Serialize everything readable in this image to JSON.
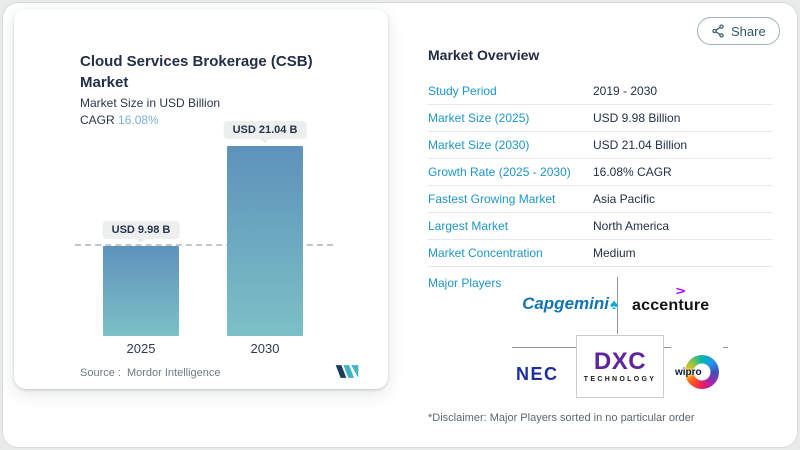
{
  "share_button": {
    "label": "Share"
  },
  "chart_panel": {
    "title_line1": "Cloud Services Brokerage (CSB)",
    "title_line2": "Market",
    "subtitle": "Market Size in USD Billion",
    "cagr_label": "CAGR",
    "cagr_value": "16.08%",
    "source_label": "Source :",
    "source_value": "Mordor Intelligence"
  },
  "chart_data": {
    "type": "bar",
    "title": "Cloud Services Brokerage (CSB) Market",
    "ylabel": "Market Size in USD Billion",
    "cagr_pct": 16.08,
    "categories": [
      "2025",
      "2030"
    ],
    "values": [
      9.98,
      21.04
    ],
    "bar_labels": [
      "USD 9.98 B",
      "USD 21.04 B"
    ],
    "reference_line_value": 9.98,
    "bar_gradient_top": "#5E92BB",
    "bar_gradient_bottom": "#7CC0C6",
    "legend": "none",
    "grid": "off"
  },
  "overview": {
    "heading": "Market Overview",
    "rows": [
      {
        "label": "Study Period",
        "value": "2019 - 2030"
      },
      {
        "label": "Market Size (2025)",
        "value": "USD 9.98 Billion"
      },
      {
        "label": "Market Size (2030)",
        "value": "USD 21.04 Billion"
      },
      {
        "label": "Growth Rate (2025 - 2030)",
        "value": "16.08% CAGR"
      },
      {
        "label": "Fastest Growing Market",
        "value": "Asia Pacific"
      },
      {
        "label": "Largest Market",
        "value": "North America"
      },
      {
        "label": "Market Concentration",
        "value": "Medium"
      }
    ],
    "major_players_label": "Major Players",
    "players": {
      "capgemini": {
        "text": "Capgemini",
        "color": "#0070AD"
      },
      "accenture": {
        "text": "accenture",
        "accent_color": "#A100FF"
      },
      "nec": {
        "text": "NEC",
        "color": "#1F2F9C"
      },
      "dxc": {
        "text": "DXC",
        "subtext": "TECHNOLOGY",
        "color": "#5F249F"
      },
      "wipro": {
        "text": "wipro"
      }
    },
    "disclaimer": "*Disclaimer: Major Players sorted in no particular order"
  },
  "colors": {
    "row_label_blue": "#1E95C9",
    "value_navy": "#233048",
    "cagr_accent": "#7FB0D3"
  }
}
